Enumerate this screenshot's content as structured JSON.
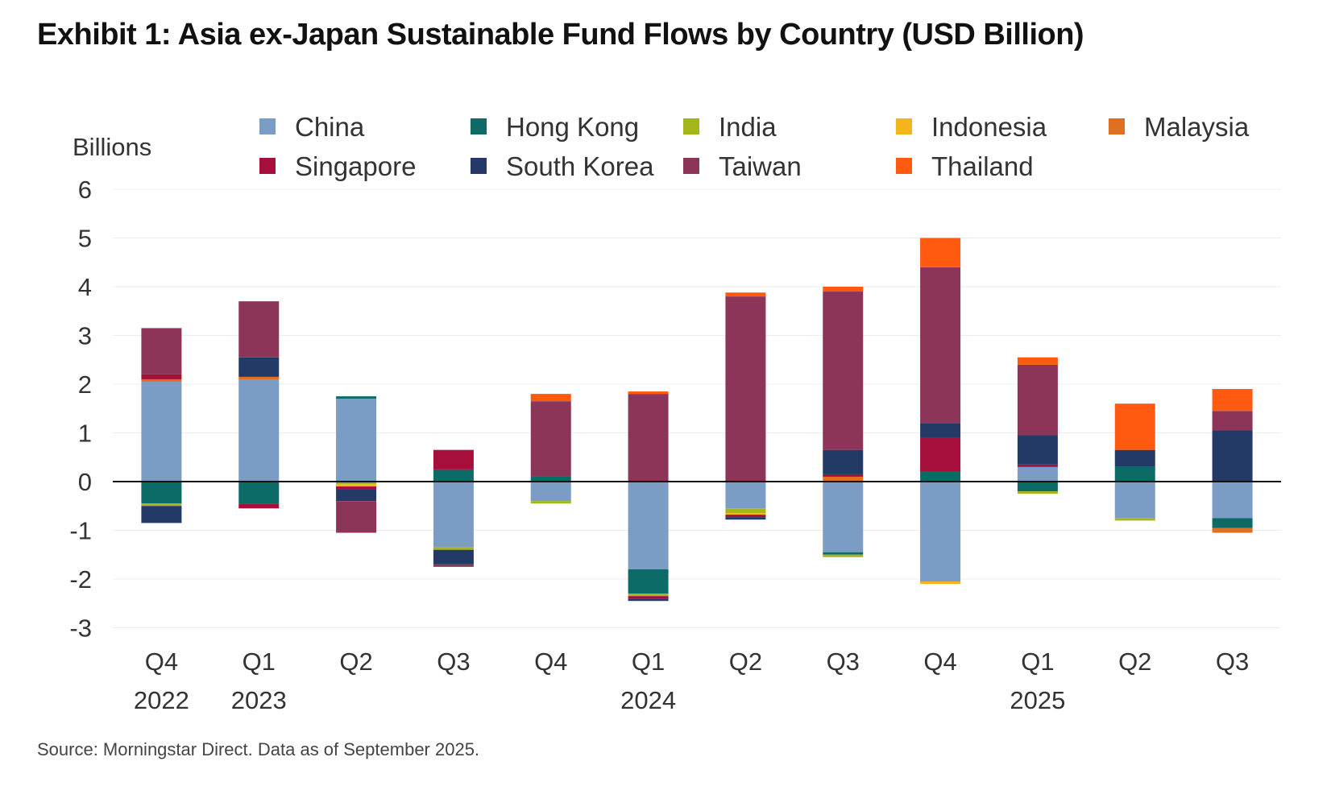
{
  "title": "Exhibit 1: Asia ex-Japan Sustainable Fund Flows by Country (USD Billion)",
  "source": "Source: Morningstar Direct. Data as of September 2025.",
  "chart_data": {
    "type": "bar",
    "stacked": true,
    "ylabel": "Billions",
    "ylim": [
      -3,
      6
    ],
    "yticks": [
      6,
      5,
      4,
      3,
      2,
      1,
      0,
      -1,
      -2,
      -3
    ],
    "grid": true,
    "legend_position": "top",
    "categories": [
      [
        "Q4",
        "2022"
      ],
      [
        "Q1",
        "2023"
      ],
      [
        "Q2",
        ""
      ],
      [
        "Q3",
        ""
      ],
      [
        "Q4",
        ""
      ],
      [
        "Q1",
        "2024"
      ],
      [
        "Q2",
        ""
      ],
      [
        "Q3",
        ""
      ],
      [
        "Q4",
        ""
      ],
      [
        "Q1",
        "2025"
      ],
      [
        "Q2",
        ""
      ],
      [
        "Q3",
        ""
      ]
    ],
    "series": [
      {
        "name": "China",
        "color": "#7b9cc4",
        "values": [
          2.05,
          2.1,
          1.7,
          -1.35,
          -0.4,
          -1.8,
          -0.55,
          -1.45,
          -2.05,
          0.3,
          -0.75,
          -0.75
        ]
      },
      {
        "name": "Hong Kong",
        "color": "#0d6b67",
        "values": [
          -0.45,
          -0.45,
          0.05,
          0.25,
          0.1,
          -0.5,
          0.0,
          -0.05,
          0.2,
          -0.2,
          0.3,
          -0.2
        ]
      },
      {
        "name": "India",
        "color": "#a4b61c",
        "values": [
          -0.05,
          0.0,
          -0.05,
          -0.05,
          -0.05,
          -0.05,
          -0.1,
          -0.05,
          0.0,
          -0.05,
          -0.05,
          0.0
        ]
      },
      {
        "name": "Indonesia",
        "color": "#f4b41c",
        "values": [
          0.0,
          0.0,
          -0.05,
          0.0,
          0.0,
          0.0,
          -0.03,
          0.0,
          -0.05,
          0.0,
          0.0,
          0.0
        ]
      },
      {
        "name": "Malaysia",
        "color": "#e07020",
        "values": [
          0.05,
          0.05,
          0.0,
          0.0,
          0.0,
          0.0,
          0.0,
          0.1,
          0.0,
          0.0,
          0.0,
          -0.1
        ]
      },
      {
        "name": "Singapore",
        "color": "#a60e3c",
        "values": [
          0.1,
          -0.1,
          -0.05,
          0.4,
          0.0,
          -0.05,
          -0.05,
          0.05,
          0.7,
          0.05,
          0.0,
          0.0
        ]
      },
      {
        "name": "South Korea",
        "color": "#243a66",
        "values": [
          -0.35,
          0.4,
          -0.25,
          -0.3,
          0.0,
          -0.05,
          -0.05,
          0.5,
          0.3,
          0.6,
          0.35,
          1.05
        ]
      },
      {
        "name": "Taiwan",
        "color": "#8c3558",
        "values": [
          0.95,
          1.15,
          -0.65,
          -0.05,
          1.55,
          1.8,
          3.8,
          3.25,
          3.2,
          1.45,
          0.0,
          0.4
        ]
      },
      {
        "name": "Thailand",
        "color": "#ff5a0f",
        "values": [
          0.0,
          0.0,
          0.0,
          0.0,
          0.15,
          0.05,
          0.08,
          0.1,
          0.6,
          0.15,
          0.95,
          0.45
        ]
      }
    ]
  }
}
